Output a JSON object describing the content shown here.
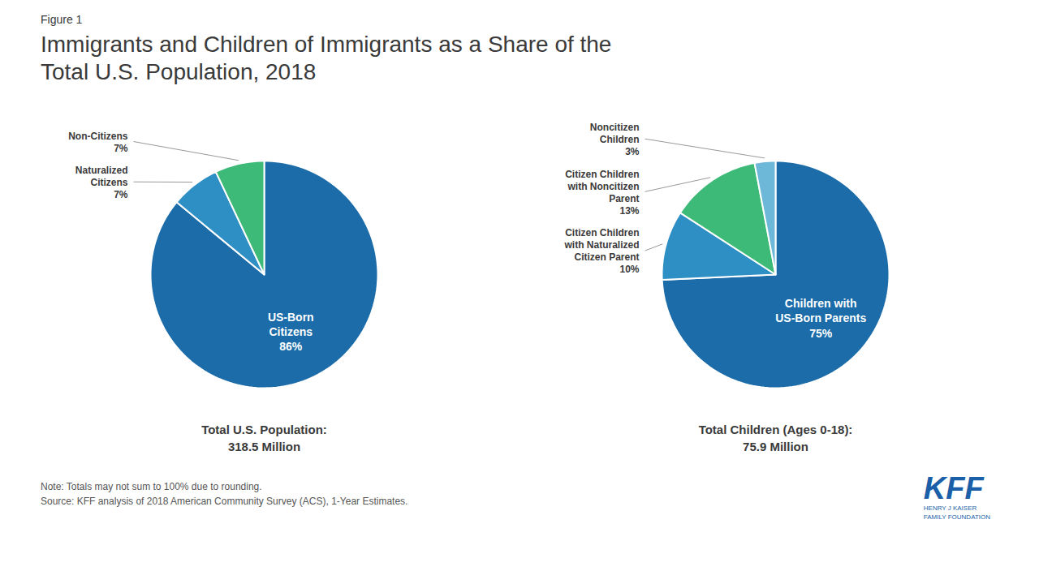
{
  "label": "Figure 1",
  "title": "Immigrants and Children of Immigrants as a Share of the\nTotal U.S. Population, 2018",
  "caption": [
    "Note: Totals may not sum to 100% due to rounding.",
    "Source: KFF analysis of 2018 American Community Survey (ACS), 1-Year Estimates."
  ],
  "annotations": [
    "KFF",
    "HENRY J KAISER\nFAMILY FOUNDATION"
  ],
  "chart_data": [
    {
      "type": "pie",
      "subtitle": "Total U.S. Population:\n318.5 Million",
      "categories": [
        "US-Born\nCitizens",
        "Naturalized\nCitizens",
        "Non-Citizens"
      ],
      "values": [
        86,
        7,
        7
      ],
      "value_labels": [
        "86%",
        "7%",
        "7%"
      ],
      "colors": [
        "#1b6ca8",
        "#2e8fc5",
        "#3dba77"
      ],
      "data_labels": true
    },
    {
      "type": "pie",
      "subtitle": "Total Children (Ages 0-18):\n75.9 Million",
      "categories": [
        "Children with\nUS-Born Parents",
        "Citizen Children\nwith Naturalized\nCitizen Parent",
        "Citizen Children\nwith Noncitizen\nParent",
        "Noncitizen\nChildren"
      ],
      "values": [
        75,
        10,
        13,
        3
      ],
      "value_labels": [
        "75%",
        "10%",
        "13%",
        "3%"
      ],
      "colors": [
        "#1b6ca8",
        "#2e8fc5",
        "#3dba77",
        "#6db8d8"
      ],
      "data_labels": true
    }
  ]
}
